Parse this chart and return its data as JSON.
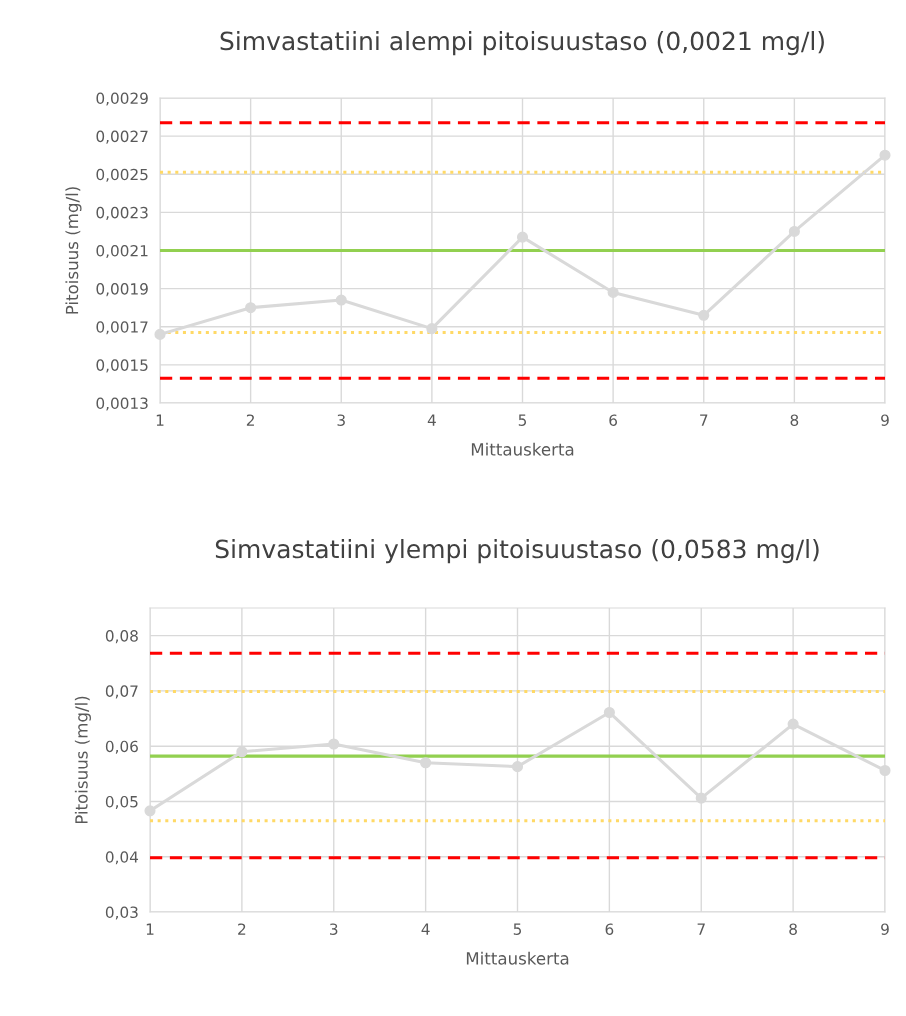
{
  "chart_data": [
    {
      "type": "line",
      "title": "Simvastatiini alempi pitoisuustaso (0,0021 mg/l)",
      "xlabel": "Mittauskerta",
      "ylabel": "Pitoisuus (mg/l)",
      "x": [
        1,
        2,
        3,
        4,
        5,
        6,
        7,
        8,
        9
      ],
      "series": [
        {
          "color": "#d9d9d9",
          "values": [
            0.00166,
            0.0018,
            0.00184,
            0.00169,
            0.00217,
            0.00188,
            0.00176,
            0.0022,
            0.0026
          ]
        }
      ],
      "marker": "circle",
      "line_style": "solid",
      "grid": true,
      "legend": false,
      "xlim": [
        1,
        9
      ],
      "xticks": [
        1,
        2,
        3,
        4,
        5,
        6,
        7,
        8,
        9
      ],
      "ylim": [
        0.0013,
        0.0029
      ],
      "yticks": [
        {
          "value": 0.0013,
          "label": "0,0013"
        },
        {
          "value": 0.0015,
          "label": "0,0015"
        },
        {
          "value": 0.0017,
          "label": "0,0017"
        },
        {
          "value": 0.0019,
          "label": "0,0019"
        },
        {
          "value": 0.0021,
          "label": "0,0021"
        },
        {
          "value": 0.0023,
          "label": "0,0023"
        },
        {
          "value": 0.0025,
          "label": "0,0025"
        },
        {
          "value": 0.0027,
          "label": "0,0027"
        },
        {
          "value": 0.0029,
          "label": "0,0029"
        }
      ],
      "ref_lines": [
        {
          "axis": "y",
          "value": 0.00277,
          "color": "#ff0000",
          "line_style": "dashed"
        },
        {
          "axis": "y",
          "value": 0.00251,
          "color": "#ffd966",
          "line_style": "dotted"
        },
        {
          "axis": "y",
          "value": 0.0021,
          "color": "#92d050",
          "line_style": "solid"
        },
        {
          "axis": "y",
          "value": 0.00167,
          "color": "#ffd966",
          "line_style": "dotted"
        },
        {
          "axis": "y",
          "value": 0.00143,
          "color": "#ff0000",
          "line_style": "dashed"
        }
      ]
    },
    {
      "type": "line",
      "title": "Simvastatiini ylempi pitoisuustaso (0,0583 mg/l)",
      "xlabel": "Mittauskerta",
      "ylabel": "Pitoisuus (mg/l)",
      "x": [
        1,
        2,
        3,
        4,
        5,
        6,
        7,
        8,
        9
      ],
      "series": [
        {
          "color": "#d9d9d9",
          "values": [
            0.0483,
            0.059,
            0.0604,
            0.057,
            0.0563,
            0.0661,
            0.0506,
            0.064,
            0.0556
          ]
        }
      ],
      "marker": "circle",
      "line_style": "solid",
      "grid": true,
      "legend": false,
      "xlim": [
        1,
        9
      ],
      "xticks": [
        1,
        2,
        3,
        4,
        5,
        6,
        7,
        8,
        9
      ],
      "ylim": [
        0.03,
        0.085
      ],
      "yticks": [
        {
          "value": 0.03,
          "label": "0,03"
        },
        {
          "value": 0.04,
          "label": "0,04"
        },
        {
          "value": 0.05,
          "label": "0,05"
        },
        {
          "value": 0.06,
          "label": "0,06"
        },
        {
          "value": 0.07,
          "label": "0,07"
        },
        {
          "value": 0.08,
          "label": "0,08"
        }
      ],
      "ref_lines": [
        {
          "axis": "y",
          "value": 0.0768,
          "color": "#ff0000",
          "line_style": "dashed"
        },
        {
          "axis": "y",
          "value": 0.0699,
          "color": "#ffd966",
          "line_style": "dotted"
        },
        {
          "axis": "y",
          "value": 0.0582,
          "color": "#92d050",
          "line_style": "solid"
        },
        {
          "axis": "y",
          "value": 0.0465,
          "color": "#ffd966",
          "line_style": "dotted"
        },
        {
          "axis": "y",
          "value": 0.0398,
          "color": "#ff0000",
          "line_style": "dashed"
        }
      ]
    }
  ]
}
